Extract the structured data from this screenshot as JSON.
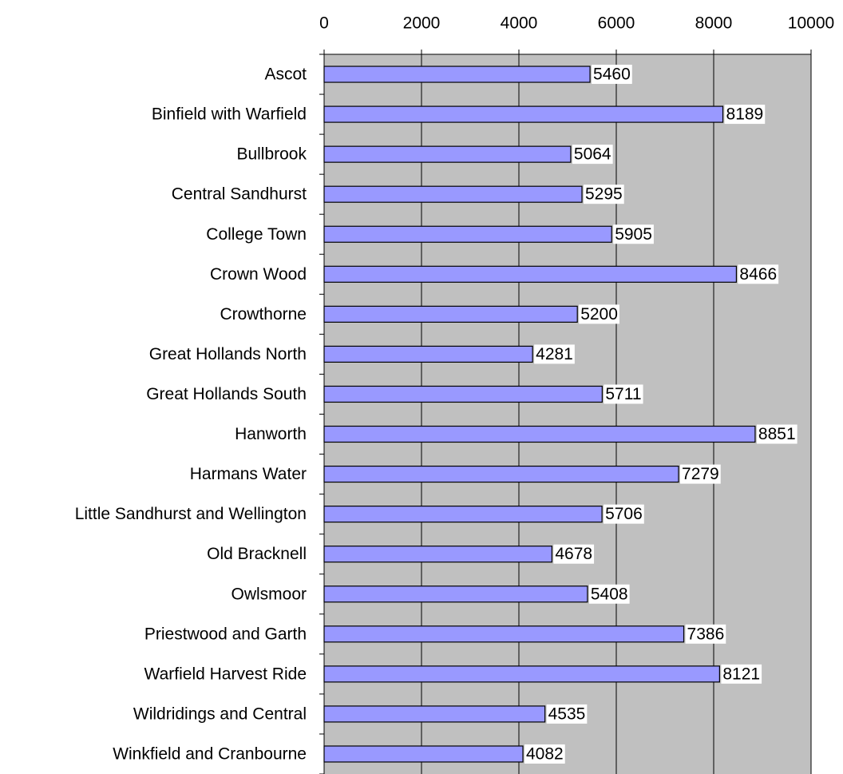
{
  "chart_data": {
    "type": "hbar",
    "categories": [
      "Ascot",
      "Binfield with Warfield",
      "Bullbrook",
      "Central Sandhurst",
      "College Town",
      "Crown Wood",
      "Crowthorne",
      "Great Hollands North",
      "Great Hollands South",
      "Hanworth",
      "Harmans Water",
      "Little Sandhurst and Wellington",
      "Old Bracknell",
      "Owlsmoor",
      "Priestwood and Garth",
      "Warfield Harvest Ride",
      "Wildridings and Central",
      "Winkfield and Cranbourne"
    ],
    "values": [
      5460,
      8189,
      5064,
      5295,
      5905,
      8466,
      5200,
      4281,
      5711,
      8851,
      7279,
      5706,
      4678,
      5408,
      7386,
      8121,
      4535,
      4082
    ],
    "color": "#9999ff",
    "background": "#c0c0c0",
    "xlim": [
      0,
      10000
    ],
    "xticks": [
      0,
      2000,
      4000,
      6000,
      8000,
      10000
    ],
    "grid": true
  }
}
